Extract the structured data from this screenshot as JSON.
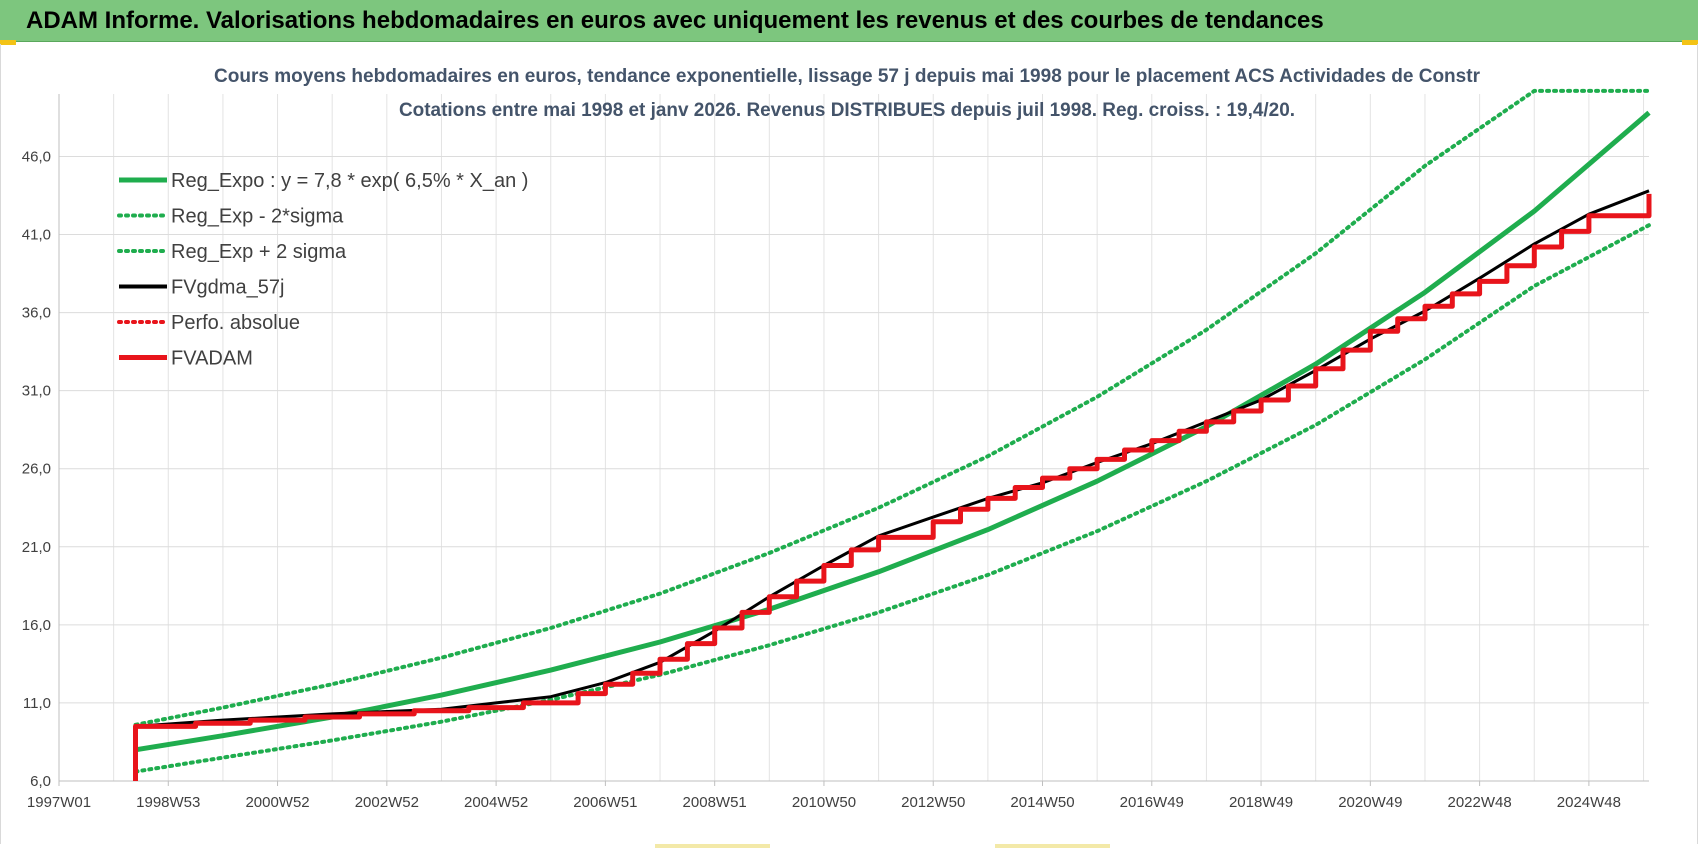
{
  "header": {
    "title": "ADAM Informe. Valorisations hebdomadaires en euros avec uniquement les revenus et des courbes de tendances",
    "background_color": "#7dc67e"
  },
  "chart_data": {
    "type": "line",
    "title": "Cours moyens hebdomadaires en euros, tendance exponentielle, lissage 57 j depuis mai 1998 pour le placement ACS Actividades de Constr",
    "subtitle": "Cotations entre mai 1998 et janv 2026. Revenus DISTRIBUES depuis juil 1998. Reg. croiss. : 19,4/20.",
    "xlabel": "",
    "ylabel": "",
    "x_tick_labels": [
      "1997W01",
      "1998W53",
      "2000W52",
      "2002W52",
      "2004W52",
      "2006W51",
      "2008W51",
      "2010W50",
      "2012W50",
      "2014W50",
      "2016W49",
      "2018W49",
      "2020W49",
      "2022W48",
      "2024W48"
    ],
    "x_tick_years": [
      1997.0,
      1999.0,
      2001.0,
      2003.0,
      2005.0,
      2007.0,
      2009.0,
      2011.0,
      2013.0,
      2015.0,
      2017.0,
      2019.0,
      2021.0,
      2023.0,
      2025.0
    ],
    "xlim": [
      1997.0,
      2026.1
    ],
    "y_tick_labels": [
      "6,0",
      "11,0",
      "16,0",
      "21,0",
      "26,0",
      "31,0",
      "36,0",
      "41,0",
      "46,0"
    ],
    "y_ticks": [
      6,
      11,
      16,
      21,
      26,
      31,
      36,
      41,
      46
    ],
    "ylim": [
      6,
      50
    ],
    "grid": true,
    "legend_position": "top-left",
    "series": [
      {
        "name": "Reg_Expo : y = 7,8 * exp( 6,5% *  X_an )",
        "color": "#1fad4e",
        "style": "solid",
        "x": [
          1998.4,
          2000,
          2002,
          2004,
          2006,
          2008,
          2010,
          2012,
          2014,
          2016,
          2018,
          2020,
          2022,
          2024,
          2026.1
        ],
        "y": [
          8.0,
          8.9,
          10.1,
          11.5,
          13.1,
          14.9,
          17.0,
          19.4,
          22.1,
          25.2,
          28.7,
          32.7,
          37.3,
          42.5,
          48.8
        ]
      },
      {
        "name": "Reg_Exp - 2*sigma",
        "color": "#1fad4e",
        "style": "dotted",
        "x": [
          1998.4,
          2000,
          2002,
          2004,
          2006,
          2008,
          2010,
          2012,
          2014,
          2016,
          2018,
          2020,
          2022,
          2024,
          2026.1
        ],
        "y": [
          6.6,
          7.5,
          8.6,
          9.8,
          11.2,
          12.8,
          14.7,
          16.8,
          19.2,
          22.0,
          25.2,
          28.8,
          33.0,
          37.7,
          41.6
        ]
      },
      {
        "name": "Reg_Exp + 2 sigma",
        "color": "#1fad4e",
        "style": "dotted",
        "x": [
          1998.4,
          2000,
          2002,
          2004,
          2006,
          2008,
          2010,
          2012,
          2014,
          2016,
          2018,
          2020,
          2022,
          2024,
          2025.0,
          2026.1
        ],
        "y": [
          9.6,
          10.7,
          12.2,
          13.9,
          15.8,
          18.0,
          20.6,
          23.5,
          26.8,
          30.6,
          34.9,
          39.8,
          45.4,
          50.2,
          50.2,
          50.2
        ]
      },
      {
        "name": "FVgdma_57j",
        "color": "#000000",
        "style": "solid",
        "x": [
          1998.4,
          1998.4,
          2000,
          2002,
          2004,
          2005,
          2006,
          2007,
          2008,
          2009,
          2010,
          2011,
          2012,
          2013,
          2014,
          2015,
          2016,
          2017,
          2018,
          2019,
          2020,
          2021,
          2022,
          2023,
          2024,
          2025,
          2026.1
        ],
        "y": [
          6.0,
          9.5,
          9.9,
          10.3,
          10.6,
          11.0,
          11.4,
          12.3,
          13.6,
          15.6,
          17.8,
          19.8,
          21.7,
          22.9,
          24.1,
          25.1,
          26.4,
          27.6,
          29.0,
          30.4,
          32.3,
          34.3,
          36.1,
          38.2,
          40.4,
          42.3,
          43.8
        ]
      },
      {
        "name": "Perfo. absolue",
        "color": "#e8141b",
        "style": "dotted",
        "x": [],
        "y": []
      },
      {
        "name": "FVADAM",
        "color": "#e8141b",
        "style": "step",
        "x": [
          1998.4,
          1998.4,
          1999.5,
          2000.5,
          2001.5,
          2002.5,
          2003.5,
          2004.5,
          2005.5,
          2006.5,
          2007.0,
          2007.5,
          2008.0,
          2008.5,
          2009.0,
          2009.5,
          2010.0,
          2010.5,
          2011.0,
          2011.5,
          2012.0,
          2013.0,
          2013.5,
          2014.0,
          2014.5,
          2015.0,
          2015.5,
          2016.0,
          2016.5,
          2017.0,
          2017.5,
          2018.0,
          2018.5,
          2019.0,
          2019.5,
          2020.0,
          2020.5,
          2021.0,
          2021.5,
          2022.0,
          2022.5,
          2023.0,
          2023.5,
          2024.0,
          2024.5,
          2025.0,
          2026.1
        ],
        "y": [
          6.0,
          9.5,
          9.7,
          9.9,
          10.1,
          10.3,
          10.5,
          10.7,
          11.0,
          11.6,
          12.2,
          12.9,
          13.8,
          14.8,
          15.8,
          16.8,
          17.8,
          18.8,
          19.8,
          20.8,
          21.6,
          22.6,
          23.4,
          24.1,
          24.8,
          25.4,
          26.0,
          26.6,
          27.2,
          27.8,
          28.4,
          29.0,
          29.7,
          30.4,
          31.3,
          32.4,
          33.6,
          34.8,
          35.6,
          36.4,
          37.2,
          38.0,
          39.0,
          40.2,
          41.2,
          42.2,
          43.6
        ]
      }
    ]
  }
}
